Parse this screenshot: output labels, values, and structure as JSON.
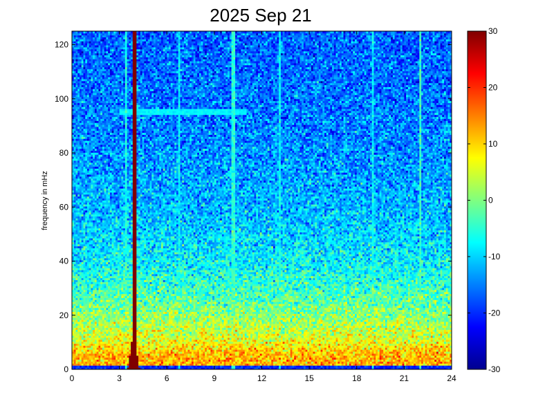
{
  "chart_data": {
    "type": "heatmap",
    "title": "2025 Sep 21",
    "xlabel": "",
    "ylabel": "frequency in mHz",
    "xlim": [
      0,
      24
    ],
    "ylim": [
      0,
      125
    ],
    "xticks": [
      0,
      3,
      6,
      9,
      12,
      15,
      18,
      21,
      24
    ],
    "yticks": [
      0,
      20,
      40,
      60,
      80,
      100,
      120
    ],
    "colorbar": {
      "colormap": "jet",
      "clim": [
        -30,
        30
      ],
      "ticks": [
        -30,
        -20,
        -10,
        0,
        10,
        20,
        30
      ]
    },
    "features": {
      "baseline_by_frequency_mHz": [
        {
          "f": 0,
          "value": 12
        },
        {
          "f": 5,
          "value": 12
        },
        {
          "f": 12,
          "value": 5
        },
        {
          "f": 25,
          "value": -2
        },
        {
          "f": 40,
          "value": -8
        },
        {
          "f": 60,
          "value": -12
        },
        {
          "f": 90,
          "value": -15
        },
        {
          "f": 125,
          "value": -17
        }
      ],
      "low_band_mHz": [
        0,
        1.5
      ],
      "low_band_value": -20,
      "event_lines": [
        {
          "x_hours": 3.9,
          "value": 30,
          "label": "strong spike"
        },
        {
          "x_hours": 3.4,
          "value": -6
        },
        {
          "x_hours": 6.8,
          "value": -8
        },
        {
          "x_hours": 10.2,
          "value": -5
        },
        {
          "x_hours": 13.1,
          "value": -8
        },
        {
          "x_hours": 19.0,
          "value": -8
        },
        {
          "x_hours": 22.0,
          "value": -4
        }
      ],
      "horizontal_band": {
        "f_mHz": 95,
        "x_range_hours": [
          3,
          11
        ],
        "value": -8
      }
    }
  }
}
